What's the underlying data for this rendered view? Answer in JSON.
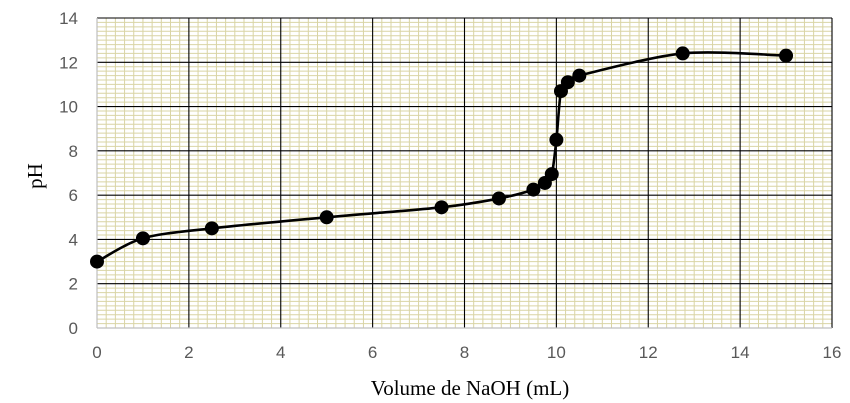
{
  "chart_data": {
    "type": "scatter",
    "title": "",
    "xlabel": "Volume de NaOH (mL)",
    "ylabel": "pH",
    "xlim": [
      0,
      16
    ],
    "ylim": [
      0,
      14
    ],
    "x_ticks": [
      0,
      2,
      4,
      6,
      8,
      10,
      12,
      14,
      16
    ],
    "y_ticks": [
      0,
      2,
      4,
      6,
      8,
      10,
      12,
      14
    ],
    "grid": true,
    "legend": "none",
    "line_style": "smooth line with markers",
    "colors": {
      "series": "#000000",
      "minor_grid": "#d9d4a4",
      "major_grid": "#000000",
      "tick_labels": "#595959"
    },
    "series": [
      {
        "x": [
          0,
          1,
          2.5,
          5,
          7.5,
          8.75,
          9.5,
          9.75,
          9.9,
          10,
          10.1,
          10.25,
          10.5,
          12.75,
          15
        ],
        "y": [
          3.0,
          4.05,
          4.5,
          5.0,
          5.45,
          5.85,
          6.25,
          6.55,
          6.95,
          8.5,
          10.7,
          11.1,
          11.4,
          12.4,
          12.3
        ]
      }
    ]
  }
}
